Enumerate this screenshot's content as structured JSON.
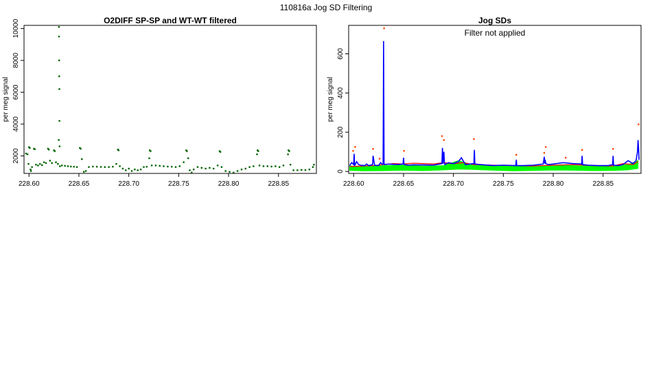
{
  "page_title": "110816a   Jog SD Filtering",
  "chart_data": [
    {
      "type": "scatter",
      "title": "O2DIFF SP-SP and WT-WT filtered",
      "xlabel": "",
      "ylabel": "per meg signal",
      "xlim": [
        228.595,
        228.888
      ],
      "ylim": [
        900,
        10200
      ],
      "xticks": [
        228.6,
        228.65,
        228.7,
        228.75,
        228.8,
        228.85
      ],
      "xtick_labels": [
        "228.60",
        "228.65",
        "228.70",
        "228.75",
        "228.80",
        "228.85"
      ],
      "yticks": [
        2000,
        4000,
        6000,
        8000,
        10000
      ],
      "ytick_labels": [
        "2000",
        "4000",
        "6000",
        "8000",
        "10000"
      ],
      "series": [
        {
          "color": "#006400",
          "points": [
            [
              228.597,
              2150
            ],
            [
              228.5985,
              2100
            ],
            [
              228.5995,
              1500
            ],
            [
              228.6,
              2550
            ],
            [
              228.6008,
              2500
            ],
            [
              228.6015,
              1150
            ],
            [
              228.602,
              1050
            ],
            [
              228.603,
              1300
            ],
            [
              228.605,
              2450
            ],
            [
              228.6058,
              2420
            ],
            [
              228.607,
              1450
            ],
            [
              228.609,
              1400
            ],
            [
              228.611,
              1500
            ],
            [
              228.613,
              1420
            ],
            [
              228.615,
              1600
            ],
            [
              228.617,
              1550
            ],
            [
              228.619,
              2450
            ],
            [
              228.6198,
              2400
            ],
            [
              228.621,
              1700
            ],
            [
              228.623,
              1550
            ],
            [
              228.625,
              2350
            ],
            [
              228.6258,
              2300
            ],
            [
              228.627,
              1600
            ],
            [
              228.629,
              1500
            ],
            [
              228.6298,
              3000
            ],
            [
              228.63,
              10100
            ],
            [
              228.6301,
              9500
            ],
            [
              228.6302,
              8000
            ],
            [
              228.6303,
              7000
            ],
            [
              228.6304,
              6200
            ],
            [
              228.6305,
              4200
            ],
            [
              228.6306,
              2600
            ],
            [
              228.631,
              1350
            ],
            [
              228.633,
              1400
            ],
            [
              228.636,
              1380
            ],
            [
              228.639,
              1350
            ],
            [
              228.642,
              1330
            ],
            [
              228.645,
              1320
            ],
            [
              228.648,
              1300
            ],
            [
              228.651,
              2500
            ],
            [
              228.6518,
              2450
            ],
            [
              228.653,
              1800
            ],
            [
              228.655,
              1000
            ],
            [
              228.657,
              1050
            ],
            [
              228.66,
              1300
            ],
            [
              228.664,
              1330
            ],
            [
              228.668,
              1320
            ],
            [
              228.672,
              1310
            ],
            [
              228.676,
              1300
            ],
            [
              228.68,
              1300
            ],
            [
              228.684,
              1320
            ],
            [
              228.6875,
              1500
            ],
            [
              228.689,
              2400
            ],
            [
              228.6898,
              2350
            ],
            [
              228.691,
              1350
            ],
            [
              228.694,
              1200
            ],
            [
              228.697,
              1100
            ],
            [
              228.7,
              1200
            ],
            [
              228.703,
              1050
            ],
            [
              228.706,
              1150
            ],
            [
              228.709,
              1100
            ],
            [
              228.712,
              1150
            ],
            [
              228.715,
              1300
            ],
            [
              228.718,
              1320
            ],
            [
              228.7205,
              1850
            ],
            [
              228.721,
              2350
            ],
            [
              228.7218,
              2300
            ],
            [
              228.723,
              1400
            ],
            [
              228.727,
              1400
            ],
            [
              228.731,
              1380
            ],
            [
              228.735,
              1350
            ],
            [
              228.739,
              1330
            ],
            [
              228.743,
              1320
            ],
            [
              228.747,
              1300
            ],
            [
              228.751,
              1350
            ],
            [
              228.755,
              1600
            ],
            [
              228.7575,
              2350
            ],
            [
              228.7583,
              2300
            ],
            [
              228.7595,
              1850
            ],
            [
              228.761,
              1100
            ],
            [
              228.763,
              950
            ],
            [
              228.765,
              1150
            ],
            [
              228.769,
              1300
            ],
            [
              228.773,
              1250
            ],
            [
              228.777,
              1200
            ],
            [
              228.781,
              1250
            ],
            [
              228.785,
              1200
            ],
            [
              228.789,
              1400
            ],
            [
              228.791,
              2300
            ],
            [
              228.7918,
              2250
            ],
            [
              228.793,
              1300
            ],
            [
              228.797,
              1050
            ],
            [
              228.801,
              1000
            ],
            [
              228.805,
              950
            ],
            [
              228.809,
              1050
            ],
            [
              228.813,
              1150
            ],
            [
              228.817,
              1200
            ],
            [
              228.821,
              1300
            ],
            [
              228.825,
              1350
            ],
            [
              228.8285,
              2100
            ],
            [
              228.829,
              2350
            ],
            [
              228.8298,
              2300
            ],
            [
              228.831,
              1400
            ],
            [
              228.835,
              1350
            ],
            [
              228.839,
              1350
            ],
            [
              228.843,
              1330
            ],
            [
              228.847,
              1350
            ],
            [
              228.851,
              1300
            ],
            [
              228.855,
              1400
            ],
            [
              228.8595,
              2100
            ],
            [
              228.86,
              2350
            ],
            [
              228.8608,
              2300
            ],
            [
              228.862,
              1450
            ],
            [
              228.865,
              1100
            ],
            [
              228.869,
              1100
            ],
            [
              228.873,
              1120
            ],
            [
              228.877,
              1110
            ],
            [
              228.881,
              1150
            ],
            [
              228.8845,
              1300
            ],
            [
              228.8855,
              1450
            ]
          ]
        }
      ]
    },
    {
      "type": "line",
      "title": "Jog SDs",
      "annotation": "Filter not applied",
      "xlabel": "",
      "ylabel": "per meg signal",
      "xlim": [
        228.595,
        228.888
      ],
      "ylim": [
        -10,
        745
      ],
      "xticks": [
        228.6,
        228.65,
        228.7,
        228.75,
        228.8,
        228.85
      ],
      "xtick_labels": [
        "228.60",
        "228.65",
        "228.70",
        "228.75",
        "228.80",
        "228.85"
      ],
      "yticks": [
        0,
        200,
        400,
        600
      ],
      "ytick_labels": [
        "0",
        "200",
        "400",
        "600"
      ],
      "series": [
        {
          "color": "#00ff00",
          "style": "band",
          "x": [
            228.596,
            228.61,
            228.63,
            228.65,
            228.67,
            228.69,
            228.705,
            228.72,
            228.74,
            228.76,
            228.78,
            228.8,
            228.82,
            228.84,
            228.86,
            228.875,
            228.885
          ],
          "low": [
            5,
            3,
            4,
            6,
            4,
            8,
            12,
            10,
            6,
            3,
            5,
            7,
            6,
            4,
            5,
            8,
            15
          ],
          "high": [
            28,
            25,
            30,
            32,
            27,
            30,
            55,
            33,
            30,
            26,
            28,
            32,
            30,
            27,
            30,
            35,
            55
          ]
        },
        {
          "color": "#ff0000",
          "style": "line",
          "x": [
            228.596,
            228.61,
            228.62,
            228.63,
            228.64,
            228.65,
            228.66,
            228.67,
            228.68,
            228.69,
            228.7,
            228.71,
            228.72,
            228.74,
            228.76,
            228.78,
            228.8,
            228.82,
            228.84,
            228.86,
            228.87,
            228.88,
            228.885
          ],
          "y": [
            25,
            28,
            30,
            35,
            40,
            38,
            42,
            40,
            38,
            45,
            40,
            45,
            35,
            32,
            30,
            28,
            32,
            35,
            30,
            28,
            40,
            35,
            50
          ]
        },
        {
          "color": "#0000ff",
          "style": "line",
          "x": [
            228.596,
            228.598,
            228.6,
            228.6005,
            228.601,
            228.603,
            228.605,
            228.607,
            228.611,
            228.613,
            228.615,
            228.619,
            228.6195,
            228.621,
            228.625,
            228.627,
            228.629,
            228.6295,
            228.63,
            228.6305,
            228.631,
            228.635,
            228.64,
            228.645,
            228.6495,
            228.65,
            228.6505,
            228.655,
            228.66,
            228.67,
            228.68,
            228.6885,
            228.689,
            228.6895,
            228.6905,
            228.691,
            228.6915,
            228.695,
            228.7,
            228.705,
            228.708,
            228.712,
            228.7205,
            228.721,
            228.7215,
            228.725,
            228.73,
            228.74,
            228.75,
            228.7625,
            228.763,
            228.7635,
            228.77,
            228.78,
            228.79,
            228.791,
            228.7915,
            228.792,
            228.7925,
            228.795,
            228.8,
            228.81,
            228.82,
            228.8285,
            228.829,
            228.8295,
            228.835,
            228.845,
            228.855,
            228.8595,
            228.86,
            228.8605,
            228.865,
            228.87,
            228.875,
            228.88,
            228.883,
            228.8845,
            228.885,
            228.8855,
            228.886
          ],
          "y": [
            30,
            45,
            35,
            90,
            30,
            50,
            35,
            32,
            30,
            38,
            30,
            35,
            80,
            32,
            30,
            45,
            35,
            40,
            665,
            40,
            35,
            38,
            36,
            35,
            38,
            70,
            35,
            32,
            34,
            33,
            32,
            40,
            120,
            40,
            100,
            40,
            35,
            45,
            40,
            50,
            70,
            35,
            40,
            110,
            38,
            36,
            34,
            30,
            32,
            30,
            60,
            30,
            30,
            32,
            38,
            75,
            40,
            60,
            40,
            35,
            38,
            45,
            40,
            38,
            80,
            35,
            32,
            30,
            30,
            35,
            80,
            32,
            30,
            35,
            55,
            40,
            55,
            100,
            160,
            120,
            60
          ]
        },
        {
          "color": "#ff4500",
          "style": "points",
          "points": [
            [
              228.5995,
              105
            ],
            [
              228.6015,
              125
            ],
            [
              228.6195,
              115
            ],
            [
              228.626,
              65
            ],
            [
              228.6305,
              730
            ],
            [
              228.6505,
              105
            ],
            [
              228.6885,
              180
            ],
            [
              228.6905,
              160
            ],
            [
              228.7205,
              165
            ],
            [
              228.763,
              85
            ],
            [
              228.791,
              95
            ],
            [
              228.7925,
              125
            ],
            [
              228.8125,
              70
            ],
            [
              228.829,
              110
            ],
            [
              228.86,
              115
            ],
            [
              228.8855,
              240
            ]
          ]
        }
      ]
    }
  ]
}
